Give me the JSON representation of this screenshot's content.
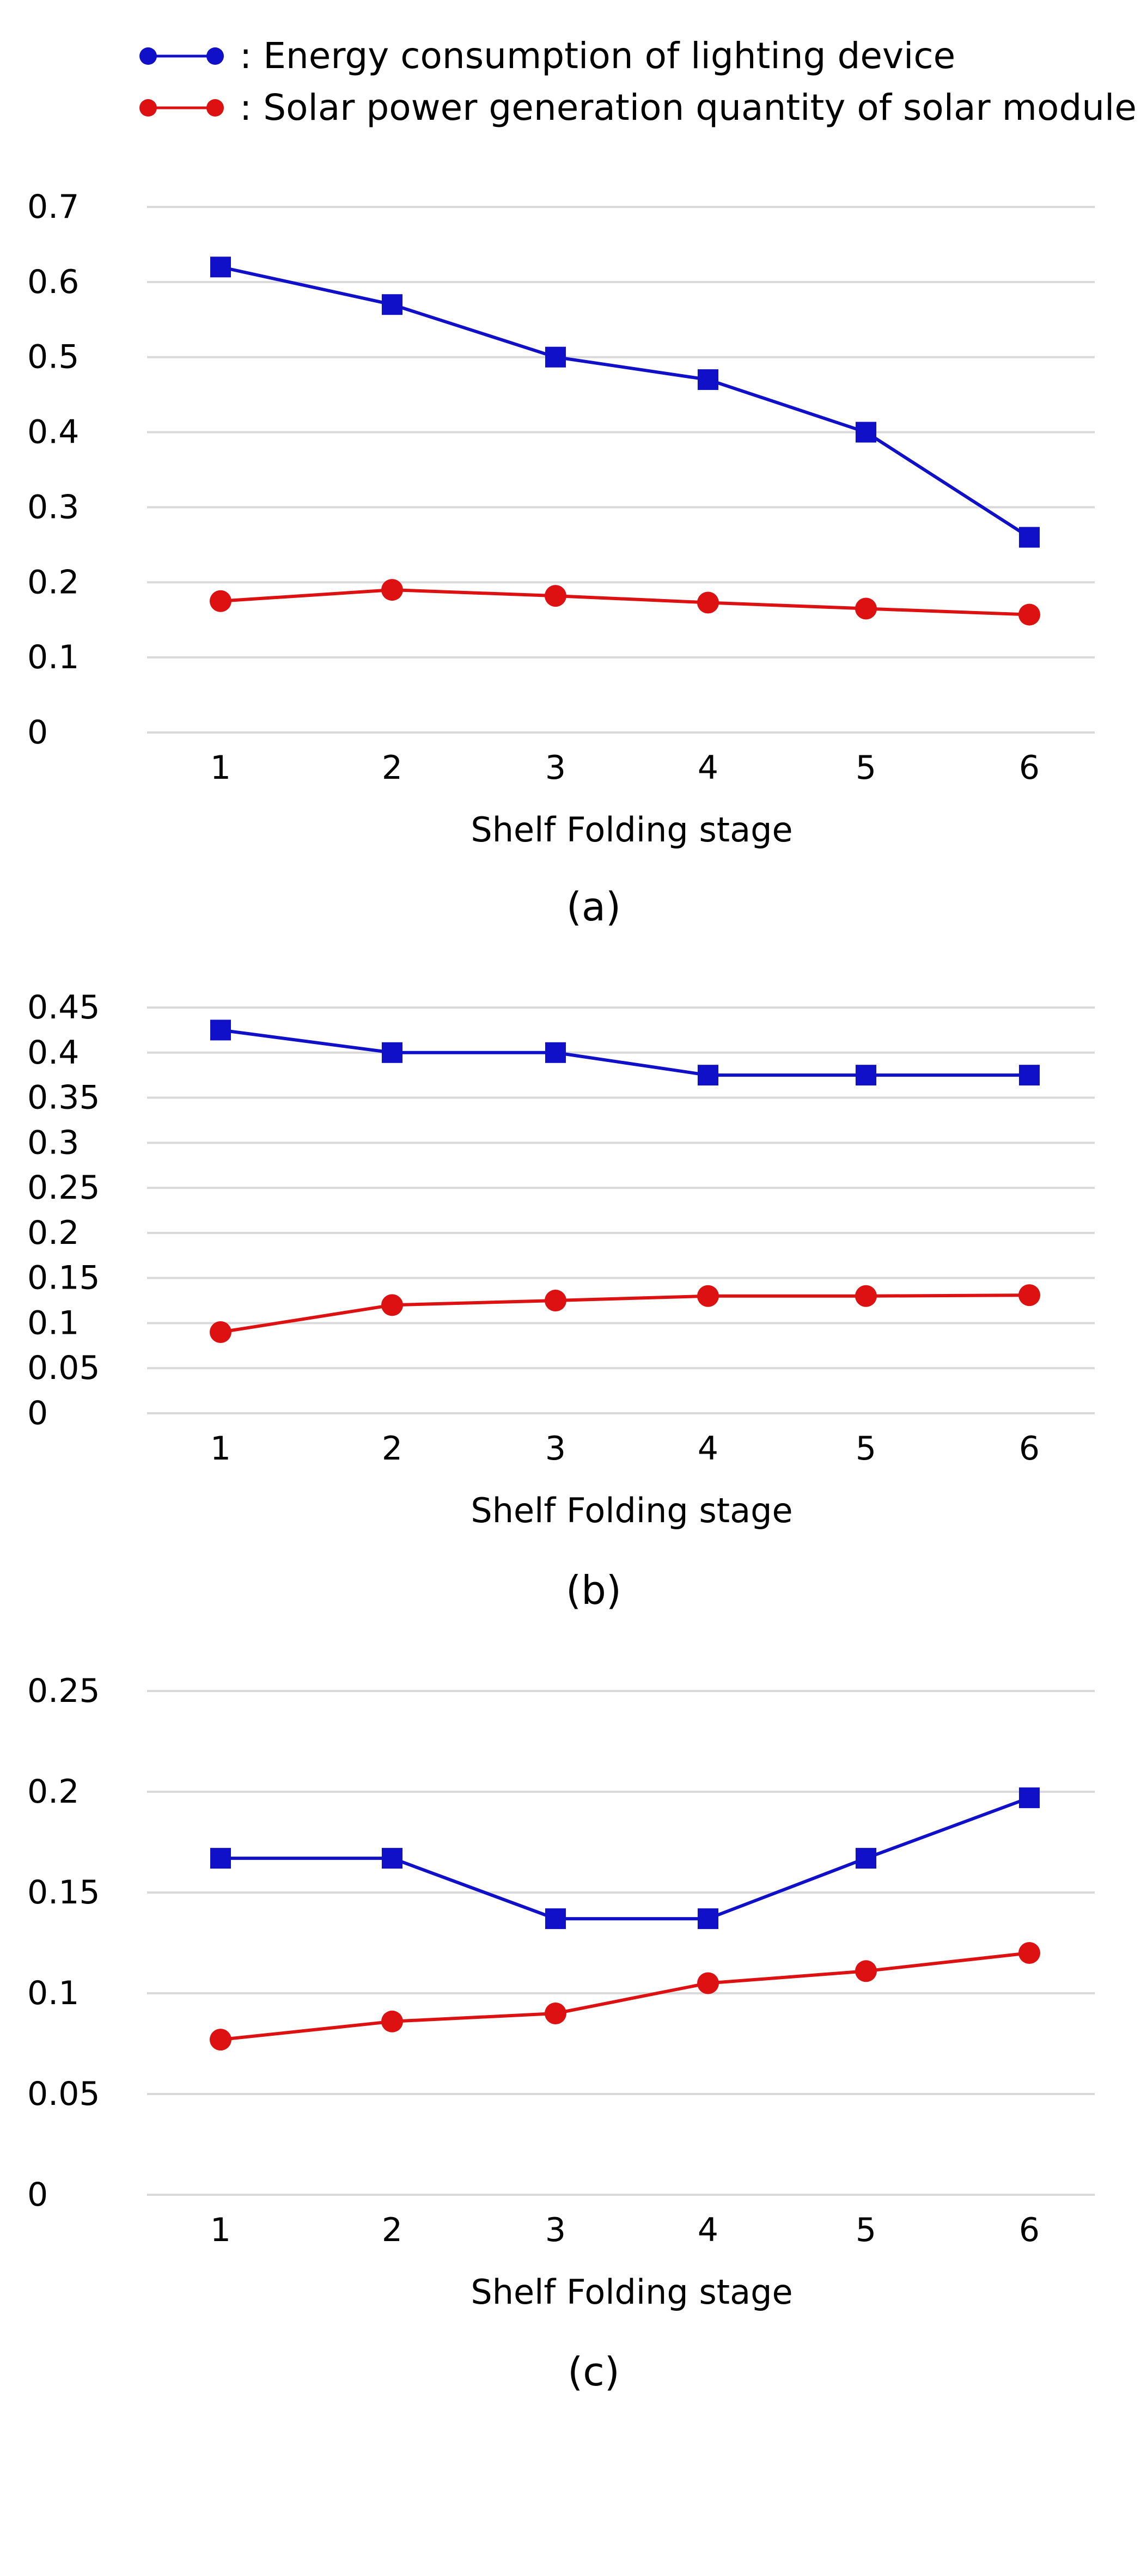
{
  "legend": {
    "items": [
      {
        "label": ": Energy consumption of lighting device",
        "color": "#1010c8",
        "marker": "circle"
      },
      {
        "label": ": Solar power generation quantity of solar module",
        "color": "#dd1111",
        "marker": "circle"
      }
    ]
  },
  "chart_data": [
    {
      "type": "line",
      "caption": "(a)",
      "xlabel": "Shelf Folding stage",
      "ylabel": "",
      "categories": [
        "1",
        "2",
        "3",
        "4",
        "5",
        "6"
      ],
      "y_ticks": [
        "0",
        "0.1",
        "0.2",
        "0.3",
        "0.4",
        "0.5",
        "0.6",
        "0.7"
      ],
      "ylim": [
        0,
        0.7
      ],
      "grid": true,
      "series": [
        {
          "name": "Energy consumption of lighting device",
          "color": "#1010c8",
          "marker": "square",
          "values": [
            0.62,
            0.57,
            0.5,
            0.47,
            0.4,
            0.26
          ]
        },
        {
          "name": "Solar power generation quantity of solar module",
          "color": "#dd1111",
          "marker": "circle",
          "values": [
            0.175,
            0.19,
            0.182,
            0.173,
            0.165,
            0.157
          ]
        }
      ]
    },
    {
      "type": "line",
      "caption": "(b)",
      "xlabel": "Shelf Folding stage",
      "ylabel": "",
      "categories": [
        "1",
        "2",
        "3",
        "4",
        "5",
        "6"
      ],
      "y_ticks": [
        "0",
        "0.05",
        "0.1",
        "0.15",
        "0.2",
        "0.25",
        "0.3",
        "0.35",
        "0.4",
        "0.45"
      ],
      "ylim": [
        0,
        0.45
      ],
      "grid": true,
      "series": [
        {
          "name": "Energy consumption of lighting device",
          "color": "#1010c8",
          "marker": "square",
          "values": [
            0.425,
            0.4,
            0.4,
            0.375,
            0.375,
            0.375
          ]
        },
        {
          "name": "Solar power generation quantity of solar module",
          "color": "#dd1111",
          "marker": "circle",
          "values": [
            0.09,
            0.12,
            0.125,
            0.13,
            0.13,
            0.131
          ]
        }
      ]
    },
    {
      "type": "line",
      "caption": "(c)",
      "xlabel": "Shelf Folding stage",
      "ylabel": "",
      "categories": [
        "1",
        "2",
        "3",
        "4",
        "5",
        "6"
      ],
      "y_ticks": [
        "0",
        "0.05",
        "0.1",
        "0.15",
        "0.2",
        "0.25"
      ],
      "ylim": [
        0,
        0.25
      ],
      "grid": true,
      "series": [
        {
          "name": "Energy consumption of lighting device",
          "color": "#1010c8",
          "marker": "square",
          "values": [
            0.167,
            0.167,
            0.137,
            0.137,
            0.167,
            0.197
          ]
        },
        {
          "name": "Solar power generation quantity of solar module",
          "color": "#dd1111",
          "marker": "circle",
          "values": [
            0.077,
            0.086,
            0.09,
            0.105,
            0.111,
            0.12
          ]
        }
      ]
    }
  ]
}
